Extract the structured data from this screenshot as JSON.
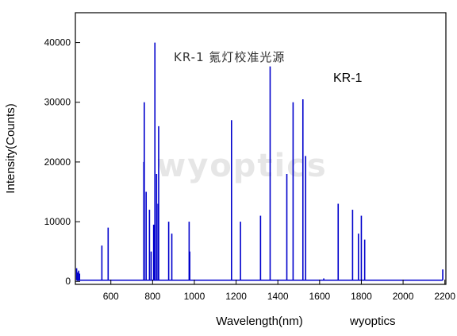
{
  "chart_data": {
    "type": "line",
    "title": "KR-1 氪灯校准光源",
    "legend": "KR-1",
    "legend_position": "top-right",
    "xlabel": "Wavelength(nm)",
    "ylabel": "Intensity(Counts)",
    "credit": "wyoptics",
    "watermark": "wyoptics",
    "xlim": [
      430,
      2205
    ],
    "ylim": [
      -500,
      45000
    ],
    "xticks": [
      600,
      800,
      1000,
      1200,
      1400,
      1600,
      1800,
      2000,
      2200
    ],
    "yticks": [
      0,
      10000,
      20000,
      30000,
      40000
    ],
    "grid": false,
    "series_color": "#0000cc",
    "baseline": 200,
    "peaks": [
      {
        "x": 436,
        "y": 2200
      },
      {
        "x": 440,
        "y": 1500
      },
      {
        "x": 446,
        "y": 1800
      },
      {
        "x": 450,
        "y": 1300
      },
      {
        "x": 557,
        "y": 6000
      },
      {
        "x": 587,
        "y": 9000
      },
      {
        "x": 758,
        "y": 20000
      },
      {
        "x": 760,
        "y": 30000
      },
      {
        "x": 769,
        "y": 15000
      },
      {
        "x": 785,
        "y": 12000
      },
      {
        "x": 793,
        "y": 5000
      },
      {
        "x": 805,
        "y": 9500
      },
      {
        "x": 811,
        "y": 40000
      },
      {
        "x": 819,
        "y": 18000
      },
      {
        "x": 826,
        "y": 13000
      },
      {
        "x": 829,
        "y": 26000
      },
      {
        "x": 877,
        "y": 10000
      },
      {
        "x": 892,
        "y": 8000
      },
      {
        "x": 975,
        "y": 10000
      },
      {
        "x": 978,
        "y": 5000
      },
      {
        "x": 1178,
        "y": 27000
      },
      {
        "x": 1221,
        "y": 10000
      },
      {
        "x": 1317,
        "y": 11000
      },
      {
        "x": 1363,
        "y": 36000
      },
      {
        "x": 1443,
        "y": 18000
      },
      {
        "x": 1473,
        "y": 30000
      },
      {
        "x": 1520,
        "y": 30500
      },
      {
        "x": 1533,
        "y": 21000
      },
      {
        "x": 1620,
        "y": 500
      },
      {
        "x": 1689,
        "y": 13000
      },
      {
        "x": 1758,
        "y": 12000
      },
      {
        "x": 1786,
        "y": 8000
      },
      {
        "x": 1800,
        "y": 11000
      },
      {
        "x": 1816,
        "y": 7000
      },
      {
        "x": 2190,
        "y": 2000
      }
    ]
  }
}
